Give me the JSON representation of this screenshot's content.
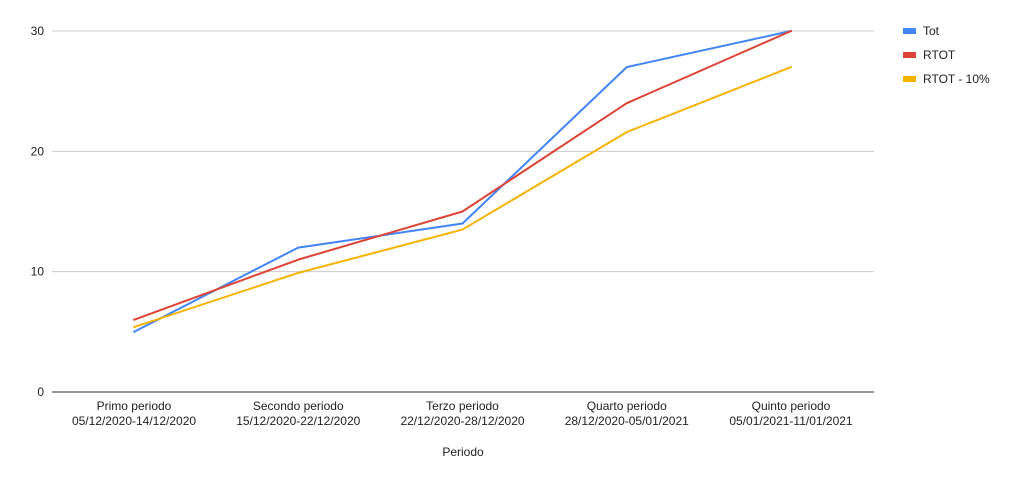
{
  "chart_data": {
    "type": "line",
    "title": "",
    "xlabel": "Periodo",
    "ylabel": "",
    "ylim": [
      0,
      30
    ],
    "yticks": [
      0,
      10,
      20,
      30
    ],
    "grid": true,
    "legend_position": "right",
    "categories": [
      [
        "Primo periodo",
        "05/12/2020-14/12/2020"
      ],
      [
        "Secondo periodo",
        "15/12/2020-22/12/2020"
      ],
      [
        "Terzo periodo",
        "22/12/2020-28/12/2020"
      ],
      [
        "Quarto periodo",
        "28/12/2020-05/01/2021"
      ],
      [
        "Quinto periodo",
        "05/01/2021-11/01/2021"
      ]
    ],
    "series": [
      {
        "name": "Tot",
        "color": "#4285f4",
        "values": [
          5,
          12,
          14,
          27,
          30
        ]
      },
      {
        "name": "RTOT",
        "color": "#db4437",
        "values": [
          6,
          11,
          15,
          24,
          30
        ]
      },
      {
        "name": "RTOT - 10%",
        "color": "#f4b400",
        "values": [
          5.4,
          9.9,
          13.5,
          21.6,
          27
        ]
      }
    ]
  }
}
